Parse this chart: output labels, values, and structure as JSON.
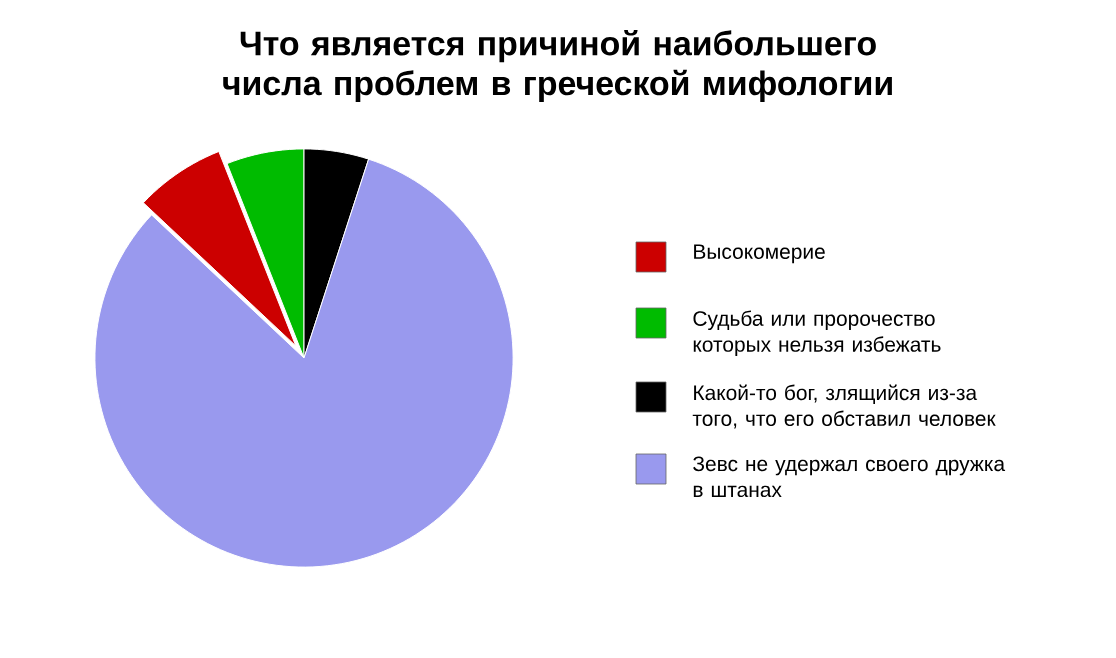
{
  "chart_data": {
    "type": "pie",
    "title": "Что является причиной наибольшего числа проблем в греческой мифологии",
    "categories": [
      "Высокомерие",
      "Судьба или пророчество которых нельзя избежать",
      "Какой-то бог, злящийся из-за того, что его обставил человек",
      "Зевс не удержал своего дружка в штанах"
    ],
    "values": [
      7,
      6,
      5,
      82
    ],
    "colors": [
      "#cc0000",
      "#00bb00",
      "#000000",
      "#9999ee"
    ],
    "legend": "right"
  }
}
